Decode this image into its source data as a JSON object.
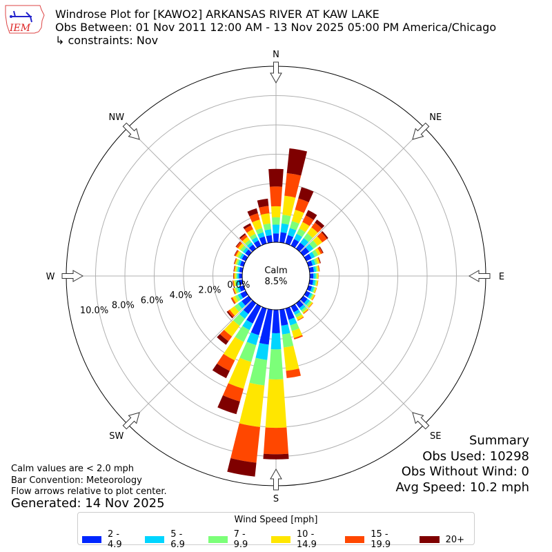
{
  "header": {
    "logo_text": "IEM",
    "title_lines": [
      "Windrose Plot for [KAWO2] ARKANSAS RIVER  AT KAW LAKE",
      "Obs Between: 01 Nov 2011 12:00 AM - 13 Nov 2025 05:00 PM America/Chicago",
      "↳ constraints: Nov"
    ]
  },
  "notes": [
    "Calm values are < 2.0 mph",
    "Bar Convention: Meteorology",
    "Flow arrows relative to plot center."
  ],
  "generated": "Generated: 14 Nov 2025",
  "summary": [
    "Summary",
    "Obs Used: 10298",
    "Obs Without Wind: 0",
    "Avg Speed: 10.2 mph"
  ],
  "chart_data": {
    "type": "windrose",
    "calm_label": "Calm",
    "calm_value": "8.5%",
    "rmax_pct": 12,
    "ring_ticks": [
      0,
      2,
      4,
      6,
      8,
      10
    ],
    "ring_labels": [
      "0.0%",
      "2.0%",
      "4.0%",
      "6.0%",
      "8.0%",
      "10.0%"
    ],
    "compass": [
      {
        "label": "N",
        "deg": 0
      },
      {
        "label": "NE",
        "deg": 45
      },
      {
        "label": "E",
        "deg": 90
      },
      {
        "label": "SE",
        "deg": 135
      },
      {
        "label": "S",
        "deg": 180
      },
      {
        "label": "SW",
        "deg": 225
      },
      {
        "label": "W",
        "deg": 270
      },
      {
        "label": "NW",
        "deg": 315
      }
    ],
    "legend_title": "Wind Speed [mph]",
    "bins": [
      {
        "label": "2 - 4.9",
        "color": "#0026ff"
      },
      {
        "label": "5 - 6.9",
        "color": "#00d5ff"
      },
      {
        "label": "7 - 9.9",
        "color": "#7cff79"
      },
      {
        "label": "10 - 14.9",
        "color": "#ffe600"
      },
      {
        "label": "15 - 19.9",
        "color": "#ff4700"
      },
      {
        "label": "20+",
        "color": "#7f0000"
      }
    ],
    "directions_deg": [
      0,
      10,
      20,
      30,
      40,
      50,
      60,
      70,
      80,
      90,
      100,
      110,
      120,
      130,
      140,
      150,
      160,
      170,
      180,
      190,
      200,
      210,
      220,
      230,
      240,
      250,
      260,
      270,
      280,
      290,
      300,
      310,
      320,
      330,
      340,
      350
    ],
    "values_pct": [
      [
        0.6,
        0.6,
        0.5,
        0.75,
        1.35,
        1.2
      ],
      [
        0.7,
        0.6,
        0.6,
        1.3,
        1.55,
        1.7
      ],
      [
        0.6,
        0.5,
        0.5,
        0.8,
        0.8,
        0.8
      ],
      [
        0.5,
        0.4,
        0.4,
        0.5,
        0.5,
        0.4
      ],
      [
        0.5,
        0.4,
        0.4,
        0.5,
        0.4,
        0.25
      ],
      [
        0.5,
        0.35,
        0.35,
        0.4,
        0.4,
        0.1
      ],
      [
        0.4,
        0.25,
        0.25,
        0.2,
        0.15,
        0.05
      ],
      [
        0.3,
        0.2,
        0.15,
        0.15,
        0.05,
        0.03
      ],
      [
        0.3,
        0.15,
        0.1,
        0.1,
        0.05,
        0
      ],
      [
        0.25,
        0.15,
        0.1,
        0.08,
        0.02,
        0
      ],
      [
        0.25,
        0.15,
        0.1,
        0.08,
        0.02,
        0
      ],
      [
        0.25,
        0.15,
        0.1,
        0.08,
        0.02,
        0
      ],
      [
        0.3,
        0.15,
        0.1,
        0.1,
        0.03,
        0
      ],
      [
        0.35,
        0.2,
        0.15,
        0.1,
        0.03,
        0
      ],
      [
        0.4,
        0.2,
        0.15,
        0.1,
        0.05,
        0
      ],
      [
        0.45,
        0.2,
        0.2,
        0.2,
        0.05,
        0
      ],
      [
        0.8,
        0.4,
        0.4,
        0.5,
        0.1,
        0
      ],
      [
        1.1,
        0.6,
        0.9,
        1.6,
        0.5,
        0
      ],
      [
        1.6,
        1.1,
        2.05,
        3.3,
        1.8,
        0.35
      ],
      [
        2.4,
        1.05,
        1.75,
        2.85,
        2.45,
        0.95
      ],
      [
        1.9,
        0.7,
        1.2,
        1.9,
        0.9,
        0.9
      ],
      [
        1.3,
        0.5,
        0.9,
        1.4,
        0.8,
        0.55
      ],
      [
        0.9,
        0.4,
        0.6,
        0.9,
        0.4,
        0.3
      ],
      [
        0.6,
        0.3,
        0.3,
        0.4,
        0.15,
        0.1
      ],
      [
        0.4,
        0.2,
        0.2,
        0.2,
        0.1,
        0.02
      ],
      [
        0.3,
        0.15,
        0.15,
        0.1,
        0.05,
        0.02
      ],
      [
        0.25,
        0.15,
        0.12,
        0.1,
        0.05,
        0.02
      ],
      [
        0.22,
        0.12,
        0.1,
        0.1,
        0.05,
        0.02
      ],
      [
        0.22,
        0.12,
        0.1,
        0.1,
        0.05,
        0.02
      ],
      [
        0.25,
        0.15,
        0.12,
        0.1,
        0.05,
        0.02
      ],
      [
        0.3,
        0.15,
        0.15,
        0.15,
        0.1,
        0.03
      ],
      [
        0.3,
        0.2,
        0.2,
        0.2,
        0.15,
        0.05
      ],
      [
        0.35,
        0.2,
        0.2,
        0.25,
        0.2,
        0.1
      ],
      [
        0.4,
        0.25,
        0.25,
        0.35,
        0.3,
        0.15
      ],
      [
        0.5,
        0.3,
        0.3,
        0.6,
        0.45,
        0.35
      ],
      [
        0.5,
        0.4,
        0.4,
        0.7,
        0.5,
        0.5
      ]
    ]
  }
}
